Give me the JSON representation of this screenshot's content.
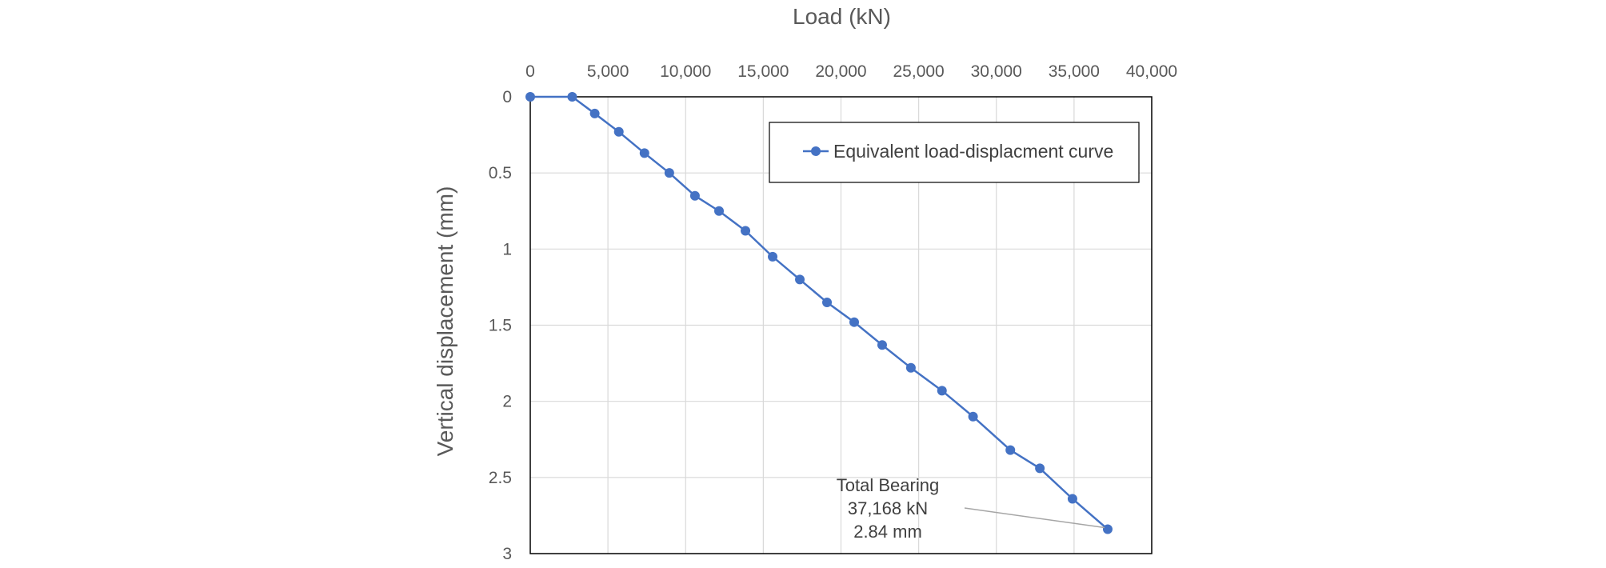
{
  "chart_data": {
    "type": "line",
    "xlabel": "Load (kN)",
    "ylabel": "Vertical displacement (mm)",
    "xlim": [
      0,
      40000
    ],
    "ylim": [
      0,
      3
    ],
    "y_inverted": true,
    "x_axis_position": "top",
    "x_ticks": [
      "0",
      "5,000",
      "10,000",
      "15,000",
      "20,000",
      "25,000",
      "30,000",
      "35,000",
      "40,000"
    ],
    "y_ticks": [
      "0",
      "0.5",
      "1",
      "1.5",
      "2",
      "2.5",
      "3"
    ],
    "grid": true,
    "legend_position": "top-right",
    "series": [
      {
        "name": "Equivalent load-displacment curve",
        "color": "#4472C4",
        "x": [
          0,
          2700,
          4150,
          5700,
          7350,
          8950,
          10600,
          12150,
          13850,
          15600,
          17350,
          19100,
          20850,
          22650,
          24500,
          26500,
          28500,
          30900,
          32800,
          34900,
          37168
        ],
        "y": [
          0,
          0,
          0.11,
          0.23,
          0.37,
          0.5,
          0.65,
          0.75,
          0.88,
          1.05,
          1.2,
          1.35,
          1.48,
          1.63,
          1.78,
          1.93,
          2.1,
          2.32,
          2.44,
          2.64,
          2.84
        ]
      }
    ],
    "annotation": {
      "lines": [
        "Total Bearing",
        "37,168 kN",
        "2.84 mm"
      ],
      "x": 37168,
      "y": 2.84
    }
  }
}
